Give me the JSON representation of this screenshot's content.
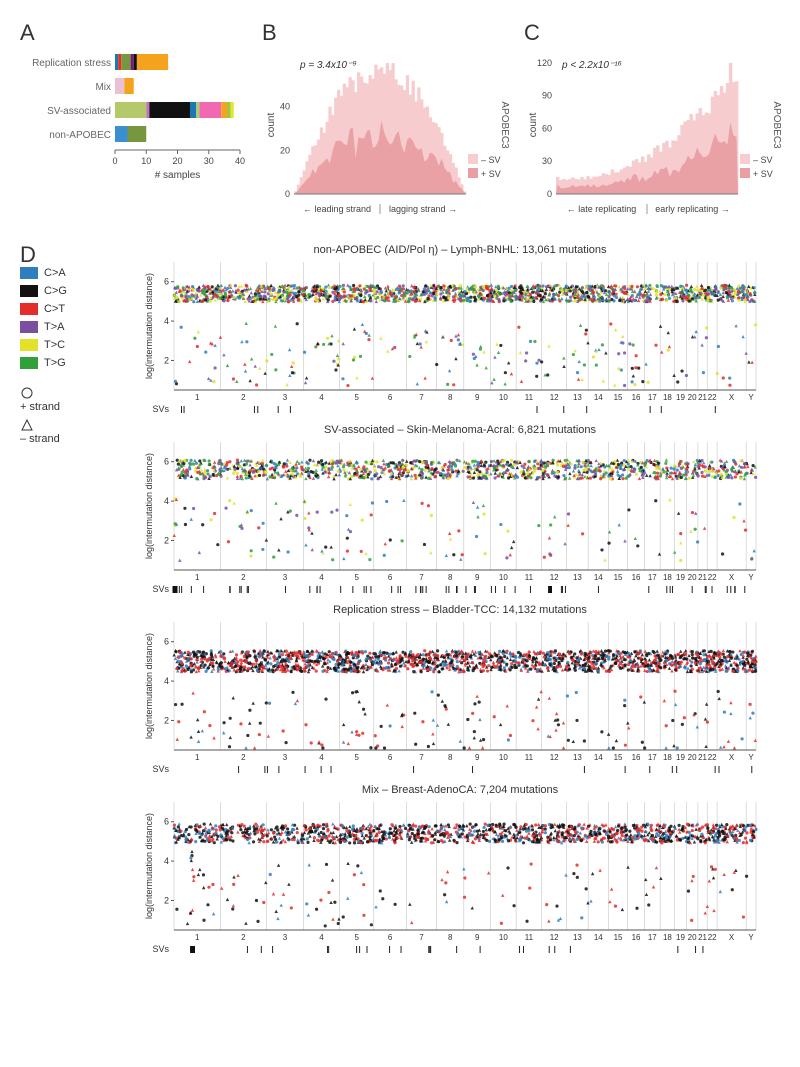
{
  "panelA": {
    "label": "A",
    "xlabel": "# samples",
    "categories": [
      "Replication stress",
      "Mix",
      "SV-associated",
      "non-APOBEC"
    ],
    "segments": [
      [
        {
          "w": 1,
          "c": "#1c78b5"
        },
        {
          "w": 1,
          "c": "#e63026"
        },
        {
          "w": 3,
          "c": "#77973f"
        },
        {
          "w": 1,
          "c": "#7a1a7a"
        },
        {
          "w": 1,
          "c": "#111111"
        },
        {
          "w": 10,
          "c": "#f5a31d"
        }
      ],
      [
        {
          "w": 3,
          "c": "#eac0d6"
        },
        {
          "w": 3,
          "c": "#f5a31d"
        }
      ],
      [
        {
          "w": 10,
          "c": "#b6c96a"
        },
        {
          "w": 1,
          "c": "#c074bf"
        },
        {
          "w": 13,
          "c": "#111111"
        },
        {
          "w": 2,
          "c": "#1c78b5"
        },
        {
          "w": 1,
          "c": "#a8d06e"
        },
        {
          "w": 7,
          "c": "#ef6ab0"
        },
        {
          "w": 2,
          "c": "#f5a31d"
        },
        {
          "w": 1,
          "c": "#8ccf45"
        },
        {
          "w": 1,
          "c": "#e6e630"
        }
      ],
      [
        {
          "w": 4,
          "c": "#3b8fd1"
        },
        {
          "w": 6,
          "c": "#77973f"
        }
      ]
    ],
    "xticks": [
      0,
      10,
      20,
      30,
      40
    ],
    "xmax": 40
  },
  "panelB": {
    "label": "B",
    "pvalue": "p = 3.4x10⁻⁹",
    "sidelabel": "APOBEC3",
    "xleft": "leading strand",
    "xright": "lagging strand",
    "ylabel": "count",
    "ymax": 60,
    "yticks": [
      0,
      20,
      40
    ],
    "legend": [
      "– SV",
      "+ SV"
    ],
    "colors": {
      "light": "#f7cccf",
      "dark": "#e89ea2"
    },
    "n": 60,
    "seed": 11
  },
  "panelC": {
    "label": "C",
    "pvalue": "p < 2.2x10⁻¹⁶",
    "sidelabel": "APOBEC3",
    "xleft": "late replicating",
    "xright": "early replicating",
    "ylabel": "count",
    "ymax": 120,
    "yticks": [
      0,
      30,
      60,
      90,
      120
    ],
    "legend": [
      "– SV",
      "+ SV"
    ],
    "colors": {
      "light": "#f7cccf",
      "dark": "#e89ea2"
    },
    "n": 60,
    "seed": 23
  },
  "panelD": {
    "label": "D",
    "mut_colors": {
      "C>A": "#2f7ec0",
      "C>G": "#111111",
      "C>T": "#e22d2b",
      "T>A": "#7a4fa0",
      "T>C": "#e2e22a",
      "T>G": "#2fa03a"
    },
    "mut_order": [
      "C>A",
      "C>G",
      "C>T",
      "T>A",
      "T>C",
      "T>G"
    ],
    "strand_labels": {
      "plus": "+ strand",
      "minus": "– strand"
    },
    "ylab": "log(intermutation distance)",
    "yticks": [
      2,
      4,
      6
    ],
    "ymin": 0.5,
    "ymax": 7.0,
    "chroms": [
      "1",
      "2",
      "3",
      "4",
      "5",
      "6",
      "7",
      "8",
      "9",
      "10",
      "11",
      "12",
      "13",
      "14",
      "15",
      "16",
      "17",
      "18",
      "19",
      "20",
      "21",
      "22",
      "X",
      "Y"
    ],
    "chrom_widths": [
      8.0,
      7.9,
      6.4,
      6.2,
      5.9,
      5.6,
      5.2,
      4.7,
      4.6,
      4.4,
      4.4,
      4.3,
      3.7,
      3.5,
      3.3,
      2.9,
      2.7,
      2.5,
      2.0,
      2.0,
      1.6,
      1.7,
      5.0,
      1.7
    ],
    "plots": [
      {
        "title": "non-APOBEC (AID/Pol η) – Lymph-BNHL: 13,061 mutations",
        "npts": 1900,
        "seed": 101,
        "spread": 1.4,
        "band_center": 5.4,
        "palette": "all",
        "sv_density": 0.02
      },
      {
        "title": "SV-associated – Skin-Melanoma-Acral: 6,821 mutations",
        "npts": 1400,
        "seed": 202,
        "spread": 1.6,
        "band_center": 5.6,
        "palette": "all",
        "sv_density": 0.1,
        "drops": [
          {
            "chr": 1,
            "frac": 0.02
          },
          {
            "chr": 12,
            "frac": 0.35
          }
        ]
      },
      {
        "title": "Replication stress – Bladder-TCC: 14,132 mutations",
        "npts": 2000,
        "seed": 303,
        "spread": 1.8,
        "band_center": 5.0,
        "palette": "bw",
        "sv_density": 0.03
      },
      {
        "title": "Mix – Breast-AdenoCA: 7,204 mutations",
        "npts": 1500,
        "seed": 404,
        "spread": 1.6,
        "band_center": 5.4,
        "palette": "bw",
        "sv_density": 0.04,
        "drops": [
          {
            "chr": 1,
            "frac": 0.4
          }
        ]
      }
    ]
  }
}
